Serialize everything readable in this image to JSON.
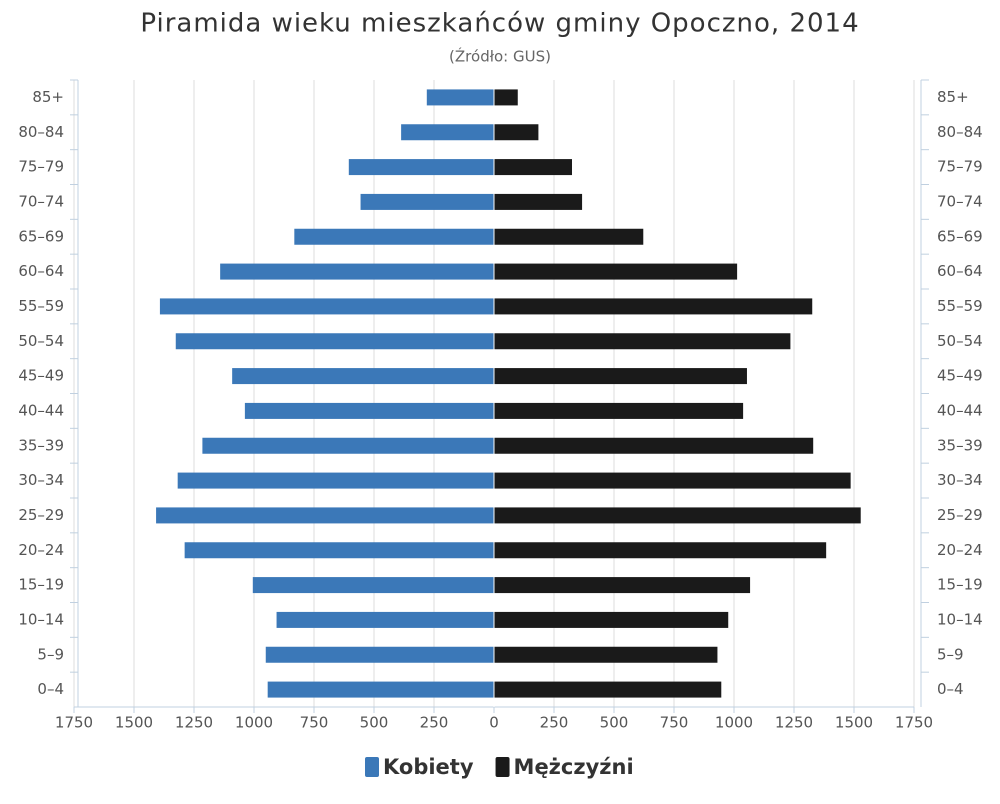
{
  "chart_data": {
    "type": "pyramid",
    "title": "Piramida wieku mieszkańców gminy Opoczno, 2014",
    "subtitle": "(Źródło: GUS)",
    "categories": [
      "85+",
      "80–84",
      "75–79",
      "70–74",
      "65–69",
      "60–64",
      "55–59",
      "50–54",
      "45–49",
      "40–44",
      "35–39",
      "30–34",
      "25–29",
      "20–24",
      "15–19",
      "10–14",
      "5–9",
      "0–4"
    ],
    "series": [
      {
        "name": "Kobiety",
        "color": "#3b78b8",
        "values": [
          -280,
          -387,
          -605,
          -556,
          -832,
          -1141,
          -1392,
          -1326,
          -1091,
          -1038,
          -1215,
          -1318,
          -1408,
          -1289,
          -1005,
          -906,
          -951,
          -943
        ]
      },
      {
        "name": "Mężczyźni",
        "color": "#1a1a1a",
        "values": [
          99,
          185,
          325,
          367,
          622,
          1013,
          1326,
          1235,
          1054,
          1038,
          1330,
          1486,
          1528,
          1384,
          1067,
          976,
          931,
          947
        ]
      }
    ],
    "xlim": [
      -1750,
      1750
    ],
    "xticks": [
      {
        "value": -1750,
        "label": "1750"
      },
      {
        "value": -1500,
        "label": "1500"
      },
      {
        "value": -1250,
        "label": "1250"
      },
      {
        "value": -1000,
        "label": "1000"
      },
      {
        "value": -750,
        "label": "750"
      },
      {
        "value": -500,
        "label": "500"
      },
      {
        "value": -250,
        "label": "250"
      },
      0,
      250,
      500,
      750,
      1000,
      1250,
      1500,
      1750
    ],
    "grid": true
  }
}
